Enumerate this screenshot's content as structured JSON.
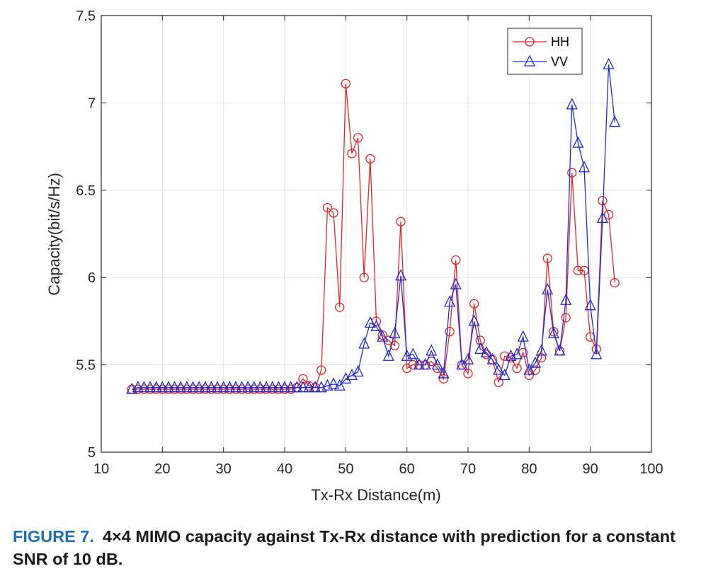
{
  "caption": {
    "label": "FIGURE 7.",
    "text": "4×4 MIMO capacity against Tx-Rx distance with prediction for a constant SNR of 10 dB."
  },
  "chart_data": {
    "type": "line",
    "xlabel": "Tx-Rx Distance(m)",
    "ylabel": "Capacity(bit/s/Hz)",
    "xlim": [
      10,
      100
    ],
    "ylim": [
      5,
      7.5
    ],
    "xticks": [
      10,
      20,
      30,
      40,
      50,
      60,
      70,
      80,
      90,
      100
    ],
    "yticks": [
      5,
      5.5,
      6,
      6.5,
      7,
      7.5
    ],
    "grid": true,
    "legend_position": "top-right",
    "x": [
      15,
      16,
      17,
      18,
      19,
      20,
      21,
      22,
      23,
      24,
      25,
      26,
      27,
      28,
      29,
      30,
      31,
      32,
      33,
      34,
      35,
      36,
      37,
      38,
      39,
      40,
      41,
      42,
      43,
      44,
      45,
      46,
      47,
      48,
      49,
      50,
      51,
      52,
      53,
      54,
      55,
      56,
      57,
      58,
      59,
      60,
      61,
      62,
      63,
      64,
      65,
      66,
      67,
      68,
      69,
      70,
      71,
      72,
      73,
      74,
      75,
      76,
      77,
      78,
      79,
      80,
      81,
      82,
      83,
      84,
      85,
      86,
      87,
      88,
      89,
      90,
      91,
      92,
      93,
      94
    ],
    "series": [
      {
        "name": "HH",
        "color": "#e0262b",
        "marker": "circle",
        "values": [
          5.36,
          5.36,
          5.36,
          5.36,
          5.36,
          5.36,
          5.36,
          5.36,
          5.36,
          5.36,
          5.36,
          5.36,
          5.36,
          5.36,
          5.36,
          5.36,
          5.36,
          5.36,
          5.36,
          5.36,
          5.36,
          5.36,
          5.36,
          5.36,
          5.36,
          5.36,
          5.36,
          5.37,
          5.42,
          5.38,
          5.37,
          5.47,
          6.4,
          6.37,
          5.83,
          7.11,
          6.71,
          6.8,
          6.0,
          6.68,
          5.75,
          5.67,
          5.64,
          5.61,
          6.32,
          5.48,
          5.5,
          5.5,
          5.5,
          5.52,
          5.48,
          5.42,
          5.69,
          6.1,
          5.5,
          5.45,
          5.85,
          5.64,
          5.56,
          5.53,
          5.4,
          5.55,
          5.54,
          5.48,
          5.57,
          5.44,
          5.47,
          5.54,
          6.11,
          5.69,
          5.58,
          5.77,
          6.6,
          6.04,
          6.04,
          5.66,
          5.59,
          6.44,
          6.36,
          5.97
        ]
      },
      {
        "name": "VV",
        "color": "#1f2ad6",
        "marker": "triangle",
        "values": [
          5.36,
          5.37,
          5.37,
          5.37,
          5.37,
          5.37,
          5.37,
          5.37,
          5.37,
          5.37,
          5.37,
          5.37,
          5.37,
          5.37,
          5.37,
          5.37,
          5.37,
          5.37,
          5.37,
          5.37,
          5.37,
          5.37,
          5.37,
          5.37,
          5.37,
          5.37,
          5.37,
          5.37,
          5.37,
          5.37,
          5.37,
          5.37,
          5.38,
          5.39,
          5.38,
          5.42,
          5.44,
          5.46,
          5.62,
          5.74,
          5.72,
          5.66,
          5.55,
          5.68,
          6.01,
          5.55,
          5.56,
          5.5,
          5.5,
          5.58,
          5.5,
          5.45,
          5.86,
          5.96,
          5.5,
          5.53,
          5.75,
          5.59,
          5.57,
          5.53,
          5.47,
          5.44,
          5.55,
          5.56,
          5.66,
          5.47,
          5.51,
          5.58,
          5.93,
          5.68,
          5.58,
          5.87,
          6.99,
          6.77,
          6.63,
          5.84,
          5.56,
          6.34,
          7.22,
          6.89
        ]
      }
    ]
  }
}
